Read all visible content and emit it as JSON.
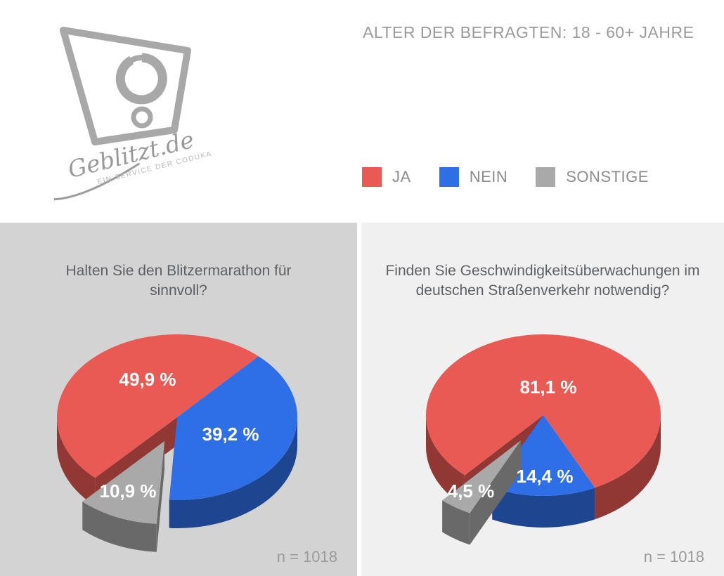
{
  "header": {
    "title": "ALTER DER BEFRAGTEN: 18 - 60+ JAHRE",
    "logo": {
      "brand": "Geblitzt.de",
      "tagline": "EIN SERVICE DER CODUKA"
    }
  },
  "legend": [
    {
      "label": "JA",
      "color": "#ea5a54"
    },
    {
      "label": "NEIN",
      "color": "#2e6fe8"
    },
    {
      "label": "SONSTIGE",
      "color": "#a9a9a9"
    }
  ],
  "chart_data": [
    {
      "type": "pie",
      "style": "3d-exploded",
      "title": "Halten Sie den Blitzermarathon für sinnvoll?",
      "labels": [
        "JA",
        "NEIN",
        "SONSTIGE"
      ],
      "values": [
        49.9,
        39.2,
        10.9
      ],
      "value_labels": [
        "49,9 %",
        "39,2 %",
        "10,9 %"
      ],
      "colors": [
        "#ea5a54",
        "#2e6fe8",
        "#a9a9a9"
      ],
      "exploded_slice": "SONSTIGE",
      "sample_note": "n = 1018"
    },
    {
      "type": "pie",
      "style": "3d-exploded",
      "title": "Finden Sie Geschwindigkeitsüberwachungen im deutschen Straßenverkehr notwendig?",
      "labels": [
        "JA",
        "NEIN",
        "SONSTIGE"
      ],
      "values": [
        81.1,
        14.4,
        4.5
      ],
      "value_labels": [
        "81,1 %",
        "14,4 %",
        "4,5 %"
      ],
      "colors": [
        "#ea5a54",
        "#2e6fe8",
        "#a9a9a9"
      ],
      "exploded_slice": "SONSTIGE",
      "sample_note": "n = 1018"
    }
  ]
}
